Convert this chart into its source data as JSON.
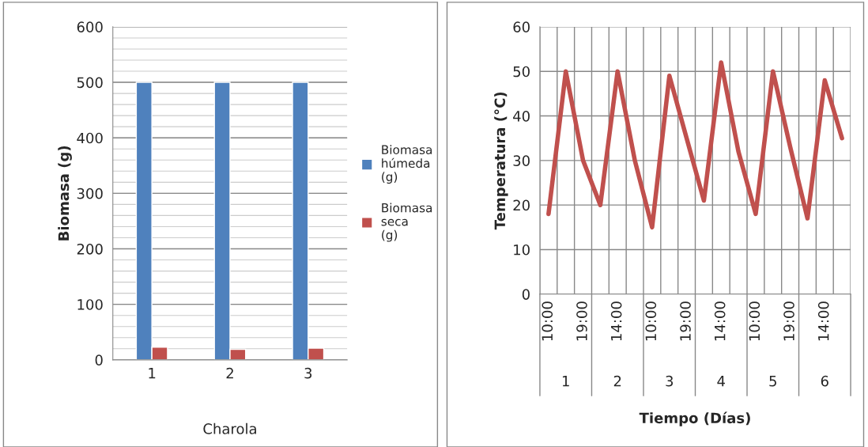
{
  "chart_data": [
    {
      "type": "bar",
      "categories": [
        "1",
        "2",
        "3"
      ],
      "xlabel": "Charola",
      "ylabel": "Biomasa (g)",
      "ylim": [
        0,
        600
      ],
      "yticks": [
        0,
        100,
        200,
        300,
        400,
        500,
        600
      ],
      "grid": "y",
      "legend": "right",
      "series": [
        {
          "name": "Biomasa húmeda (g)",
          "color": "#4f81bd",
          "values": [
            500,
            500,
            500
          ]
        },
        {
          "name": "Biomasa seca (g)",
          "color": "#c0504d",
          "values": [
            23,
            19,
            21
          ]
        }
      ]
    },
    {
      "type": "line",
      "categories": [
        "10:00",
        null,
        "19:00",
        null,
        "14:00",
        null,
        "10:00",
        null,
        "19:00",
        null,
        "14:00",
        null,
        "10:00",
        null,
        "19:00",
        null,
        "14:00",
        null
      ],
      "xlabel": "Tiempo (Días)",
      "ylabel": "Temperatura (°C)",
      "ylim": [
        0,
        60
      ],
      "yticks": [
        0,
        10,
        20,
        30,
        40,
        50,
        60
      ],
      "grid": true,
      "annotations": [
        "1",
        "2",
        "3",
        "4",
        "5",
        "6"
      ],
      "series": [
        {
          "color": "#c0504d",
          "values": [
            18,
            50,
            30,
            20,
            50,
            30,
            15,
            49,
            35,
            21,
            52,
            32,
            18,
            50,
            33,
            17,
            48,
            35
          ]
        }
      ]
    }
  ]
}
